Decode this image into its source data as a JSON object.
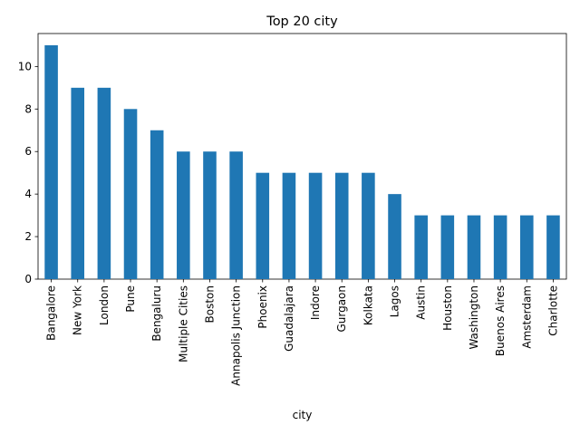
{
  "chart_data": {
    "type": "bar",
    "title": "Top 20 city",
    "xlabel": "city",
    "ylabel": "",
    "categories": [
      "Bangalore",
      "New York",
      "London",
      "Pune",
      "Bengaluru",
      "Multiple Cities",
      "Boston",
      "Annapolis Junction",
      "Phoenix",
      "Guadalajara",
      "Indore",
      "Gurgaon",
      "Kolkata",
      "Lagos",
      "Austin",
      "Houston",
      "Washington",
      "Buenos Aires",
      "Amsterdam",
      "Charlotte"
    ],
    "values": [
      11,
      9,
      9,
      8,
      7,
      6,
      6,
      6,
      5,
      5,
      5,
      5,
      5,
      4,
      3,
      3,
      3,
      3,
      3,
      3
    ],
    "ylim": [
      0,
      11.55
    ],
    "yticks": [
      0,
      2,
      4,
      6,
      8,
      10
    ],
    "grid": false,
    "bar_color": "#1f77b4"
  }
}
